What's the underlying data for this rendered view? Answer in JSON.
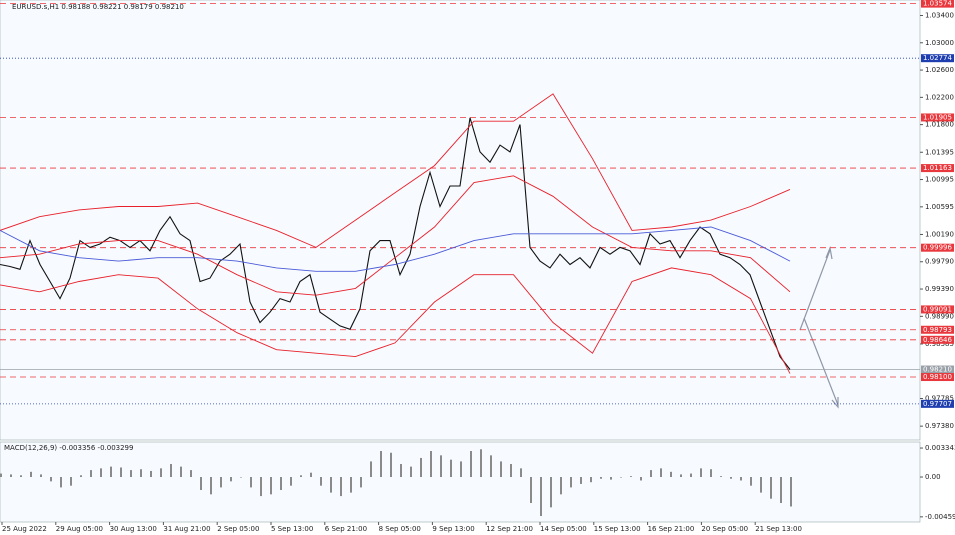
{
  "chart_data": [
    {
      "type": "line",
      "title": "EURUSD.s,H1  0.98188 0.98221 0.98179 0.98210",
      "ylim": [
        0.97177,
        1.03627
      ],
      "yticks": [
        {
          "value": 1.034,
          "label": "1.03400"
        },
        {
          "value": 1.03,
          "label": "1.03000"
        },
        {
          "value": 1.026,
          "label": "1.02600"
        },
        {
          "value": 1.022,
          "label": "1.02200"
        },
        {
          "value": 1.018,
          "label": "1.01800"
        },
        1.01395,
        {
          "value": 1.00995,
          "label": "1.00995"
        },
        {
          "value": 1.00595,
          "label": "1.00595"
        },
        {
          "value": 1.0019,
          "label": "1.00190"
        },
        {
          "value": 0.9979,
          "label": "0.99790"
        },
        {
          "value": 0.9939,
          "label": "0.99390"
        },
        {
          "value": 0.9899,
          "label": "0.98990"
        },
        0.98585,
        {
          "value": 0.97785,
          "label": "0.97785"
        },
        {
          "value": 0.9738,
          "label": "0.97380"
        }
      ],
      "xticklabels": [
        "25 Aug 2022",
        "29 Aug 05:00",
        "30 Aug 13:00",
        "31 Aug 21:00",
        "2 Sep 05:00",
        "5 Sep 13:00",
        "6 Sep 21:00",
        "8 Sep 05:00",
        "9 Sep 13:00",
        "12 Sep 21:00",
        "14 Sep 05:00",
        "15 Sep 13:00",
        "16 Sep 21:00",
        "20 Sep 05:00",
        "21 Sep 13:00"
      ],
      "levels": [
        {
          "value": 1.03574,
          "label": "1.03574",
          "color": "#e8383d",
          "style": "dashed"
        },
        {
          "value": 1.02774,
          "label": "1.02774",
          "color": "#1f3fb0",
          "style": "dotted"
        },
        {
          "value": 1.01905,
          "label": "1.01905",
          "color": "#e8383d",
          "style": "dashed"
        },
        {
          "value": 1.01163,
          "label": "1.01163",
          "color": "#e8383d",
          "style": "dashed"
        },
        {
          "value": 0.99996,
          "label": "0.99996",
          "color": "#e8383d",
          "style": "dashed"
        },
        {
          "value": 0.99091,
          "label": "0.99091",
          "color": "#e8383d",
          "style": "dashed"
        },
        {
          "value": 0.98793,
          "label": "0.98793",
          "color": "#e8383d",
          "style": "dashed"
        },
        {
          "value": 0.98646,
          "label": "0.98646",
          "color": "#e8383d",
          "style": "dashed"
        },
        {
          "value": 0.9821,
          "label": "0.98210",
          "color": "#9aa0a8",
          "style": "solid"
        },
        {
          "value": 0.981,
          "label": "0.98100",
          "color": "#e8383d",
          "style": "dashed"
        },
        {
          "value": 0.97707,
          "label": "0.97707",
          "color": "#1f3fb0",
          "style": "dotted"
        }
      ],
      "series": [
        {
          "name": "Price",
          "color": "#111111",
          "values": [
            0.9975,
            0.9972,
            0.9968,
            1.001,
            0.9975,
            0.995,
            0.9925,
            0.9955,
            1.001,
            1.0,
            1.0005,
            1.0015,
            1.001,
            1.0,
            1.001,
            0.9995,
            1.0025,
            1.0045,
            1.002,
            1.001,
            0.995,
            0.9955,
            0.998,
            0.999,
            1.0005,
            0.992,
            0.989,
            0.9905,
            0.9925,
            0.992,
            0.995,
            0.996,
            0.9905,
            0.9895,
            0.9885,
            0.988,
            0.991,
            0.9995,
            1.001,
            1.001,
            0.996,
            0.999,
            1.006,
            1.011,
            1.006,
            1.009,
            1.009,
            1.019,
            1.014,
            1.0125,
            1.015,
            1.014,
            1.018,
            1.0,
            0.998,
            0.997,
            0.999,
            0.9975,
            0.9985,
            0.997,
            1.0,
            0.999,
            1.0,
            0.9995,
            0.9975,
            1.002,
            1.0005,
            1.001,
            0.9985,
            1.001,
            1.003,
            1.002,
            0.999,
            0.9985,
            0.9975,
            0.996,
            0.992,
            0.988,
            0.984,
            0.9821
          ]
        },
        {
          "name": "Upper band",
          "color": "#e8202a",
          "values": [
            1.0025,
            1.0045,
            1.0055,
            1.006,
            1.006,
            1.0065,
            1.0045,
            1.0025,
            1.0,
            1.004,
            1.008,
            1.012,
            1.0185,
            1.0185,
            1.0225,
            1.013,
            1.0025,
            1.003,
            1.004,
            1.006,
            1.0085
          ]
        },
        {
          "name": "Middle band",
          "color": "#e8202a",
          "values": [
            0.9985,
            0.999,
            1.0005,
            1.001,
            1.001,
            0.999,
            0.996,
            0.9935,
            0.993,
            0.994,
            0.9985,
            1.003,
            1.0095,
            1.0105,
            1.0075,
            1.003,
            1.0,
            0.9995,
            0.9995,
            0.9985,
            0.9935
          ]
        },
        {
          "name": "Lower band",
          "color": "#e8202a",
          "values": [
            0.9945,
            0.9935,
            0.995,
            0.996,
            0.9955,
            0.991,
            0.9875,
            0.985,
            0.9845,
            0.984,
            0.986,
            0.992,
            0.996,
            0.996,
            0.989,
            0.9845,
            0.995,
            0.997,
            0.996,
            0.9925,
            0.9815
          ]
        },
        {
          "name": "Moving average",
          "color": "#4a5ad8",
          "values": [
            1.0025,
            0.9995,
            0.9985,
            0.998,
            0.9985,
            0.9985,
            0.998,
            0.997,
            0.9965,
            0.9965,
            0.9975,
            0.999,
            1.001,
            1.002,
            1.002,
            1.002,
            1.002,
            1.0025,
            1.003,
            1.001,
            0.998
          ]
        }
      ]
    },
    {
      "type": "bar",
      "title": "MACD(12,26,9) -0.003356 -0.003299",
      "ylim": [
        -0.00519,
        0.00404
      ],
      "yticks": [
        0.003343,
        {
          "value": 0,
          "label": "0.00"
        },
        -0.004595
      ],
      "color": "#8a8a8a",
      "values": [
        0.0004,
        0.0003,
        0.0002,
        0.0006,
        0.0003,
        -0.0005,
        -0.0012,
        -0.001,
        0.0002,
        0.0008,
        0.001,
        0.0012,
        0.0011,
        0.0008,
        0.0009,
        0.0007,
        0.001,
        0.0015,
        0.0012,
        0.0008,
        -0.0015,
        -0.002,
        -0.0012,
        -0.0005,
        0.0,
        -0.0012,
        -0.0022,
        -0.002,
        -0.0015,
        -0.001,
        0.0002,
        0.0005,
        -0.001,
        -0.0018,
        -0.0022,
        -0.0018,
        -0.0012,
        0.0018,
        0.003,
        0.0028,
        0.0015,
        0.0012,
        0.0022,
        0.003,
        0.0025,
        0.002,
        0.0018,
        0.003,
        0.0032,
        0.0025,
        0.0018,
        0.0015,
        0.001,
        -0.003,
        -0.0045,
        -0.0035,
        -0.002,
        -0.0012,
        -0.0008,
        -0.0006,
        -0.0002,
        -0.0003,
        0.0,
        0.0001,
        -0.0004,
        0.0008,
        0.001,
        0.0006,
        0.0003,
        0.0004,
        0.001,
        0.0009,
        0.0001,
        -0.0002,
        -0.0004,
        -0.001,
        -0.0018,
        -0.0025,
        -0.003,
        -0.0034
      ]
    }
  ]
}
